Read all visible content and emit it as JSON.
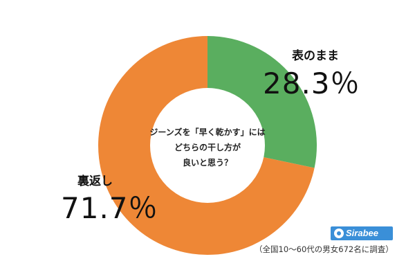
{
  "chart_data": {
    "type": "pie",
    "title": "ジーンズを「早く乾かす」にはどちらの干し方が良いと思う？",
    "title_lines": [
      "ジーンズを「早く乾かす」には",
      "どちらの干し方が",
      "良いと思う？"
    ],
    "slices": [
      {
        "name": "表のまま",
        "value": 28.3,
        "value_label": "28.3％",
        "color": "#5aae5f"
      },
      {
        "name": "裏返し",
        "value": 71.7,
        "value_label": "71.7％",
        "color": "#ee8736"
      }
    ]
  },
  "brand": {
    "label": "Sirabee"
  },
  "footnote": "（全国10〜60代の男女672名に調査）"
}
